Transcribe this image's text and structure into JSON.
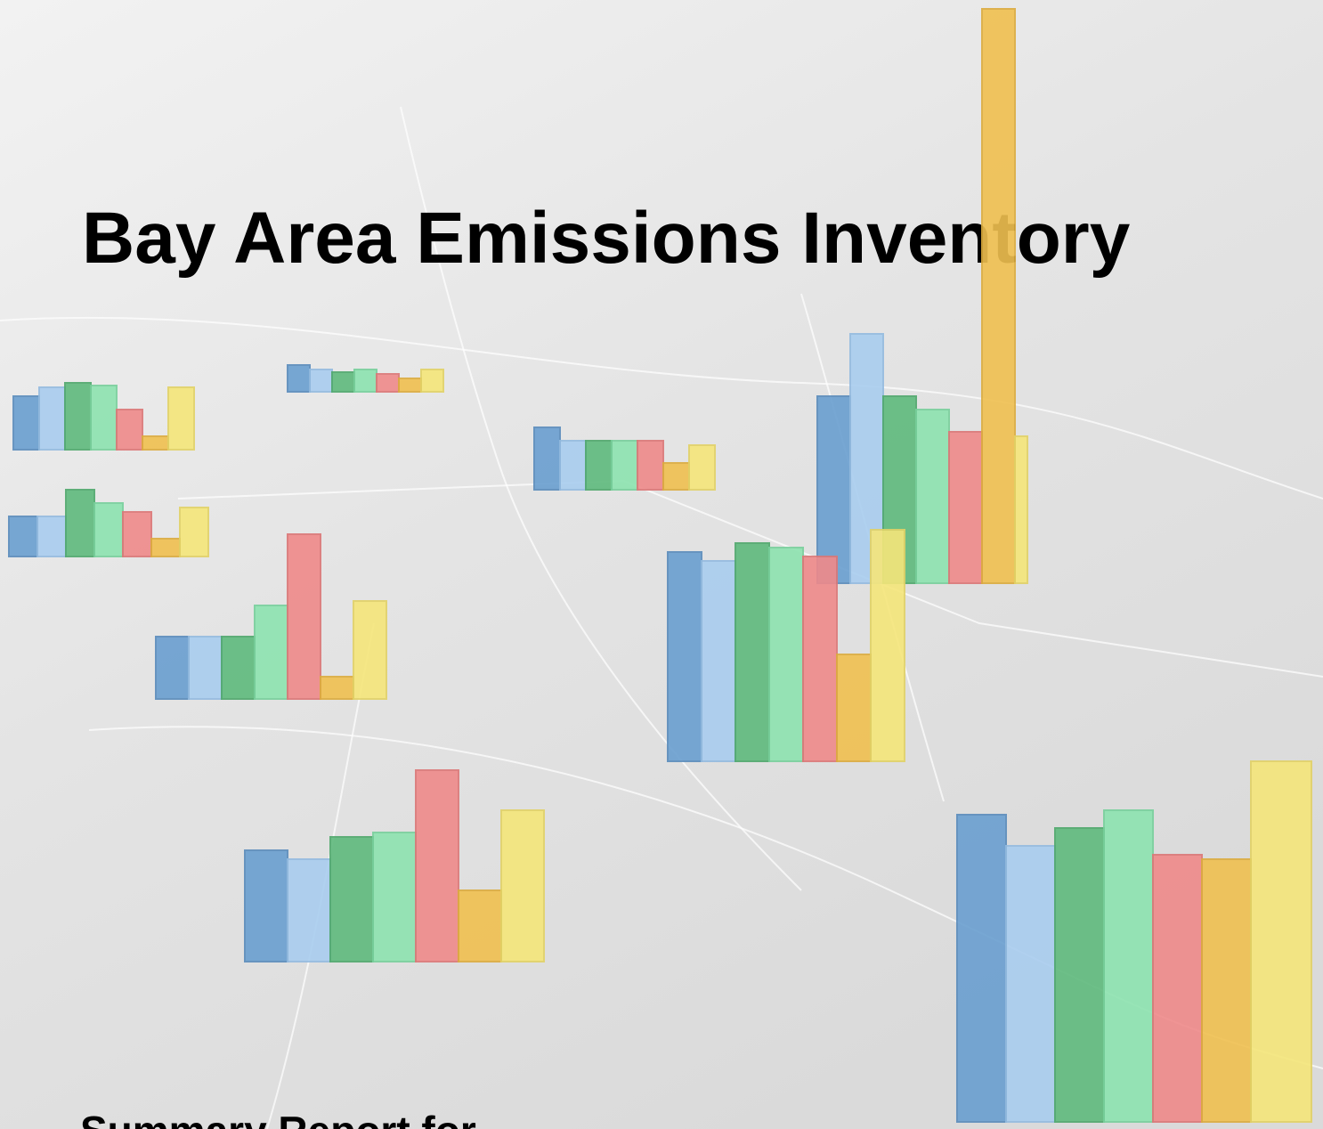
{
  "header": {
    "title": "Bay Area Emissions Inventory",
    "subtitle": "Summary Report for"
  }
}
